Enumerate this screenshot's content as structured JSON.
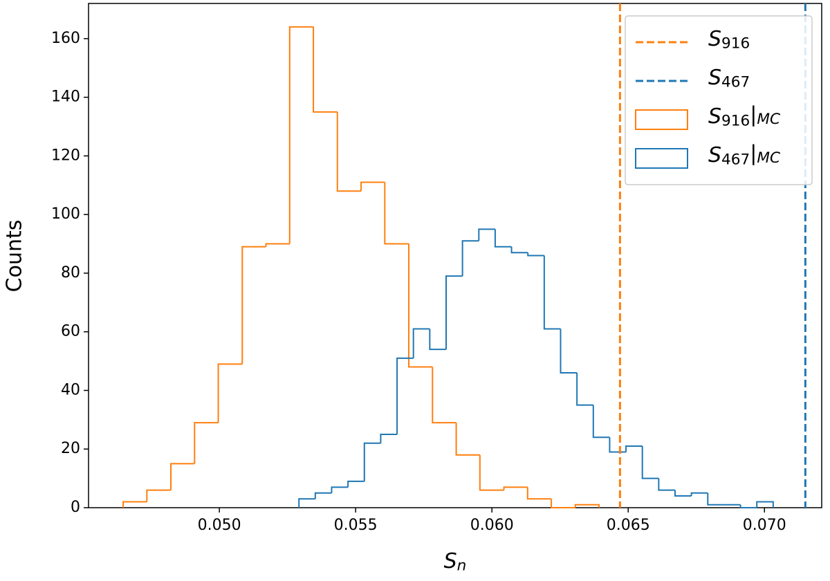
{
  "chart_data": {
    "type": "histogram",
    "xlabel": "Sn",
    "ylabel": "Counts",
    "xlim": [
      0.0452,
      0.0721
    ],
    "ylim": [
      0,
      172
    ],
    "xticks": [
      {
        "value": 0.05,
        "label": "0.050"
      },
      {
        "value": 0.055,
        "label": "0.055"
      },
      {
        "value": 0.06,
        "label": "0.060"
      },
      {
        "value": 0.065,
        "label": "0.065"
      },
      {
        "value": 0.07,
        "label": "0.070"
      }
    ],
    "yticks": [
      0,
      20,
      40,
      60,
      80,
      100,
      120,
      140,
      160
    ],
    "legend": "upper right",
    "vlines": [
      {
        "name": "S916",
        "x": 0.0647,
        "color": "#ff7f0e"
      },
      {
        "name": "S467",
        "x": 0.0715,
        "color": "#1f77b4"
      }
    ],
    "series": [
      {
        "name": "S916|MC",
        "color": "#ff7f0e",
        "bins": [
          0.04647,
          0.04734,
          0.04822,
          0.04909,
          0.04996,
          0.05084,
          0.05171,
          0.05258,
          0.05345,
          0.05433,
          0.0552,
          0.05607,
          0.05695,
          0.05782,
          0.05869,
          0.05956,
          0.06044,
          0.06131,
          0.06218,
          0.06306,
          0.06393
        ],
        "values": [
          2,
          6,
          15,
          29,
          49,
          89,
          90,
          164,
          135,
          108,
          111,
          90,
          48,
          29,
          18,
          6,
          7,
          3,
          0,
          1
        ]
      },
      {
        "name": "S467|MC",
        "color": "#1f77b4",
        "bins": [
          0.05292,
          0.05352,
          0.05412,
          0.05472,
          0.05532,
          0.05592,
          0.05652,
          0.05712,
          0.05772,
          0.05832,
          0.05892,
          0.05952,
          0.06012,
          0.06072,
          0.06132,
          0.06192,
          0.06252,
          0.06312,
          0.06372,
          0.06432,
          0.06492,
          0.06552,
          0.06612,
          0.06672,
          0.06732,
          0.06792,
          0.06852,
          0.06912,
          0.06972,
          0.07032
        ],
        "values": [
          3,
          5,
          7,
          9,
          22,
          25,
          51,
          61,
          54,
          79,
          91,
          95,
          89,
          87,
          86,
          61,
          46,
          35,
          24,
          19,
          21,
          10,
          6,
          4,
          5,
          1,
          1,
          0,
          2
        ]
      }
    ]
  }
}
